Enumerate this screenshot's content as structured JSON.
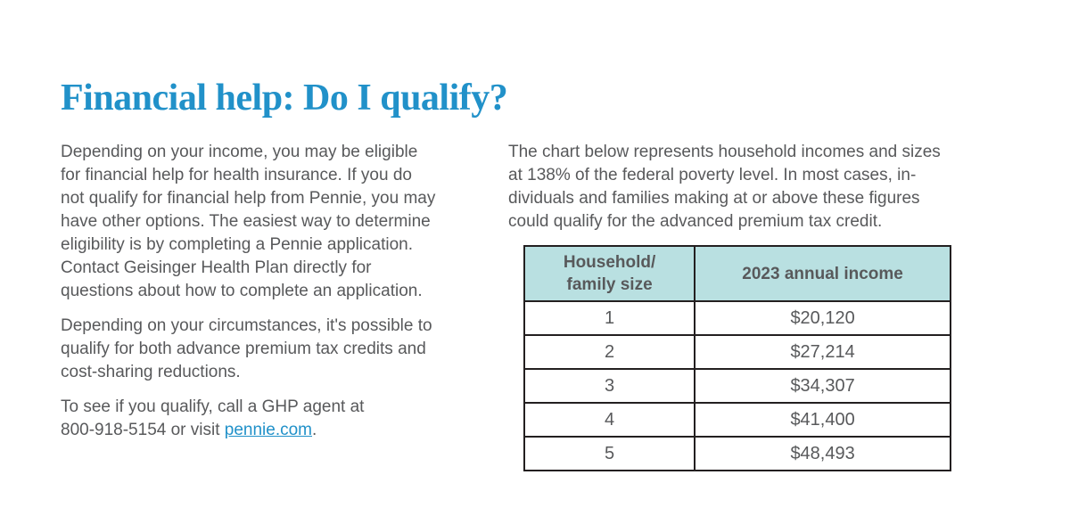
{
  "colors": {
    "title_blue": "#2191C9",
    "link_blue": "#2191C9",
    "body_gray": "#58595B",
    "table_border": "#231F20",
    "table_header_bg": "#B9E0E1"
  },
  "header": {
    "title": "Financial help: Do I qualify?"
  },
  "left_column": {
    "paragraph_1": "Depending on your income, you may be eligible\nfor financial help for health insurance. If you do\nnot qualify for financial help from Pennie, you may\nhave other options. The easiest way to determine\neligibility is by completing a Pennie application.\nContact Geisinger Health Plan directly for\nquestions about how to complete an application.",
    "paragraph_2": "Depending on your circumstances, it's possible to\nqualify for both advance premium tax credits and\ncost-sharing reductions.",
    "cta": {
      "text_before_link": "To see if you qualify, call a GHP agent at\n800-918-5154 or visit ",
      "link_label": "pennie.com",
      "text_after_link": "."
    }
  },
  "right_column": {
    "intro": "The chart below represents household incomes and sizes\nat 138% of the federal poverty level. In most cases, in-\ndividuals and families making at or above these figures\ncould qualify for the advanced premium tax credit."
  },
  "table": {
    "headers": {
      "household": "Household/\nfamily size",
      "income": "2023 annual income"
    },
    "rows": [
      {
        "size": "1",
        "income": "$20,120"
      },
      {
        "size": "2",
        "income": "$27,214"
      },
      {
        "size": "3",
        "income": "$34,307"
      },
      {
        "size": "4",
        "income": "$41,400"
      },
      {
        "size": "5",
        "income": "$48,493"
      }
    ]
  }
}
